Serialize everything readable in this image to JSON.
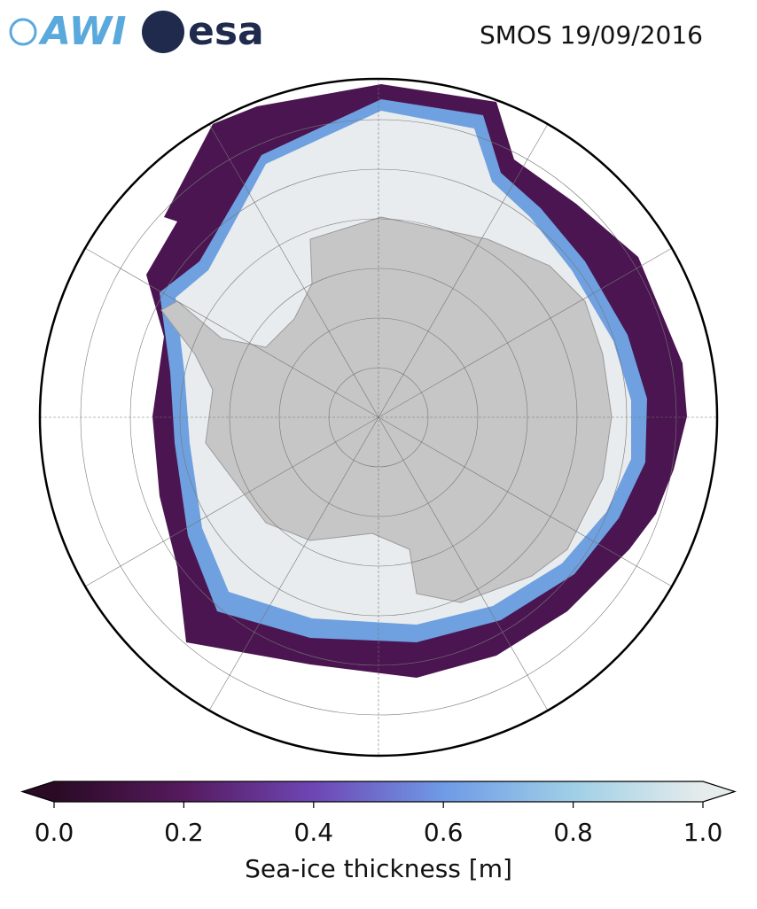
{
  "header": {
    "logos": [
      "AWI",
      "esa"
    ],
    "title": "SMOS 19/09/2016"
  },
  "colorbar": {
    "label": "Sea-ice thickness [m]",
    "range": [
      0,
      1
    ],
    "ticks": [
      {
        "value": 0,
        "label": "0.0"
      },
      {
        "value": 0.2,
        "label": "0.2"
      },
      {
        "value": 0.4,
        "label": "0.4"
      },
      {
        "value": 0.6,
        "label": "0.6"
      },
      {
        "value": 0.8,
        "label": "0.8"
      },
      {
        "value": 1,
        "label": "1.0"
      }
    ]
  }
}
